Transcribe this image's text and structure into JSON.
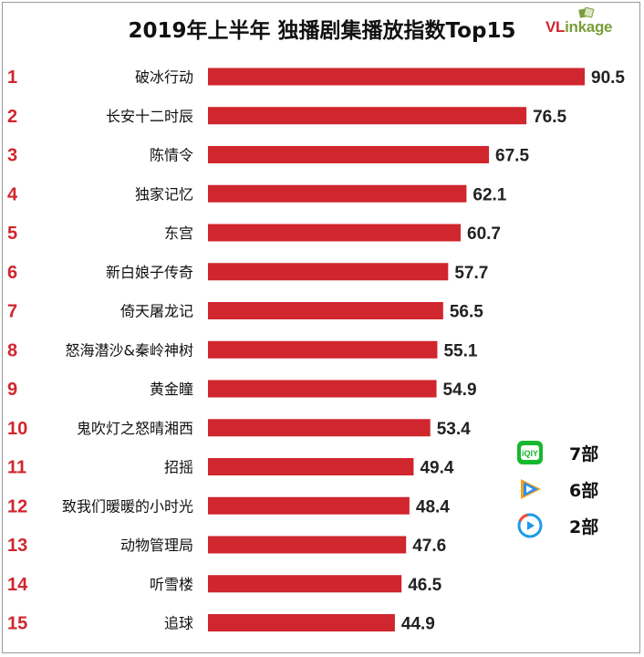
{
  "title": "2019年上半年 独播剧集播放指数Top15",
  "logo": {
    "prefix": "VL",
    "rest": "inkage"
  },
  "chart_data": {
    "type": "bar",
    "orientation": "horizontal",
    "title": "2019年上半年 独播剧集播放指数Top15",
    "ranks": [
      "1",
      "2",
      "3",
      "4",
      "5",
      "6",
      "7",
      "8",
      "9",
      "10",
      "11",
      "12",
      "13",
      "14",
      "15"
    ],
    "categories": [
      "破冰行动",
      "长安十二时辰",
      "陈情令",
      "独家记忆",
      "东宫",
      "新白娘子传奇",
      "倚天屠龙记",
      "怒海潜沙&秦岭神树",
      "黄金瞳",
      "鬼吹灯之怒晴湘西",
      "招摇",
      "致我们暖暖的小时光",
      "动物管理局",
      "听雪楼",
      "追球"
    ],
    "values": [
      90.5,
      76.5,
      67.5,
      62.1,
      60.7,
      57.7,
      56.5,
      55.1,
      54.9,
      53.4,
      49.4,
      48.4,
      47.6,
      46.5,
      44.9
    ],
    "value_labels": [
      "90.5",
      "76.5",
      "67.5",
      "62.1",
      "60.7",
      "57.7",
      "56.5",
      "55.1",
      "54.9",
      "53.4",
      "49.4",
      "48.4",
      "47.6",
      "46.5",
      "44.9"
    ],
    "bar_color": "#d0262e",
    "rank_color": "#d0262e",
    "xlim": [
      0,
      90.5
    ]
  },
  "legend": [
    {
      "icon": "iqiyi-icon",
      "label": "7部",
      "color": "#17b82e"
    },
    {
      "icon": "tencent-video-icon",
      "label": "6部",
      "color": "#2a8ff0"
    },
    {
      "icon": "youku-icon",
      "label": "2部",
      "color": "#1e9be8"
    }
  ]
}
